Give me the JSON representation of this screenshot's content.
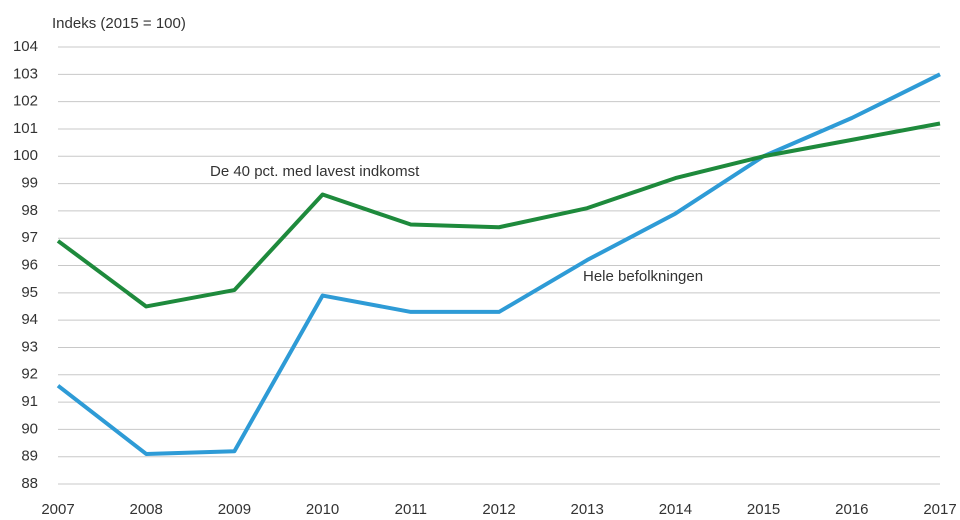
{
  "chart_data": {
    "type": "line",
    "ylabel": "Indeks (2015 = 100)",
    "x": [
      2007,
      2008,
      2009,
      2010,
      2011,
      2012,
      2013,
      2014,
      2015,
      2016,
      2017
    ],
    "xlim": [
      2007,
      2017
    ],
    "xticks": [
      2007,
      2008,
      2009,
      2010,
      2011,
      2012,
      2013,
      2014,
      2015,
      2016,
      2017
    ],
    "ylim": [
      88,
      104
    ],
    "yticks": [
      88,
      89,
      90,
      91,
      92,
      93,
      94,
      95,
      96,
      97,
      98,
      99,
      100,
      101,
      102,
      103,
      104
    ],
    "grid": true,
    "series": [
      {
        "name": "Hele befolkningen",
        "color": "#2e9bd6",
        "values": [
          91.6,
          89.1,
          89.2,
          94.9,
          94.3,
          94.3,
          96.2,
          97.9,
          100,
          101.4,
          103
        ]
      },
      {
        "name": "De  40 pct. med lavest indkomst",
        "color": "#1e8a3c",
        "values": [
          96.9,
          94.5,
          95.1,
          98.6,
          97.5,
          97.4,
          98.1,
          99.2,
          100,
          100.6,
          101.2
        ]
      }
    ]
  }
}
